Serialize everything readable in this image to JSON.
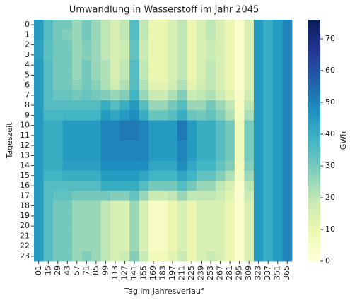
{
  "chart_data": {
    "type": "heatmap",
    "title": "Umwandlung in Wasserstoff im Jahr 2045",
    "x_label": "Tag im Jahresverlauf",
    "y_label": "Tageszeit",
    "colorbar_label": "GWh",
    "categories": [
      "01",
      "15",
      "29",
      "43",
      "57",
      "71",
      "85",
      "99",
      "113",
      "127",
      "141",
      "155",
      "169",
      "183",
      "197",
      "211",
      "225",
      "239",
      "253",
      "267",
      "281",
      "295",
      "309",
      "323",
      "337",
      "351",
      "365"
    ],
    "y_categories": [
      "0",
      "1",
      "2",
      "3",
      "4",
      "5",
      "6",
      "7",
      "8",
      "9",
      "10",
      "11",
      "12",
      "13",
      "14",
      "15",
      "16",
      "17",
      "18",
      "19",
      "20",
      "21",
      "22",
      "23"
    ],
    "clim": [
      0,
      76
    ],
    "cticks": [
      0,
      10,
      20,
      30,
      40,
      50,
      60,
      70
    ],
    "colormap": [
      "#ffffd9",
      "#edf8b1",
      "#c7e9b4",
      "#7fcdbb",
      "#41b6c4",
      "#1d91c0",
      "#225ea8",
      "#253494",
      "#081d58"
    ],
    "values": [
      [
        45,
        35,
        30,
        30,
        25,
        30,
        25,
        20,
        15,
        20,
        35,
        20,
        10,
        10,
        15,
        20,
        10,
        15,
        20,
        15,
        10,
        3,
        15,
        45,
        40,
        45,
        50
      ],
      [
        45,
        35,
        30,
        28,
        25,
        30,
        25,
        20,
        15,
        20,
        35,
        20,
        10,
        10,
        15,
        20,
        10,
        15,
        20,
        15,
        10,
        3,
        15,
        45,
        40,
        45,
        50
      ],
      [
        44,
        34,
        30,
        30,
        25,
        28,
        25,
        20,
        15,
        18,
        33,
        18,
        10,
        10,
        15,
        20,
        10,
        15,
        18,
        15,
        10,
        3,
        15,
        45,
        40,
        45,
        50
      ],
      [
        44,
        34,
        30,
        30,
        25,
        28,
        25,
        20,
        15,
        18,
        33,
        18,
        10,
        10,
        15,
        20,
        10,
        15,
        18,
        15,
        10,
        3,
        15,
        45,
        40,
        45,
        50
      ],
      [
        45,
        35,
        30,
        30,
        25,
        30,
        25,
        22,
        15,
        20,
        35,
        20,
        10,
        10,
        15,
        20,
        10,
        15,
        20,
        15,
        10,
        3,
        15,
        45,
        40,
        45,
        50
      ],
      [
        45,
        35,
        30,
        30,
        25,
        30,
        25,
        22,
        15,
        20,
        35,
        20,
        10,
        10,
        15,
        20,
        10,
        15,
        20,
        15,
        10,
        3,
        15,
        45,
        40,
        45,
        50
      ],
      [
        45,
        35,
        30,
        30,
        27,
        30,
        27,
        22,
        17,
        22,
        35,
        22,
        12,
        12,
        17,
        22,
        12,
        17,
        20,
        15,
        10,
        3,
        15,
        45,
        40,
        45,
        50
      ],
      [
        45,
        35,
        32,
        32,
        30,
        32,
        30,
        28,
        25,
        28,
        38,
        25,
        18,
        18,
        22,
        28,
        18,
        20,
        22,
        18,
        12,
        4,
        17,
        45,
        40,
        45,
        50
      ],
      [
        45,
        35,
        35,
        35,
        35,
        35,
        35,
        40,
        35,
        40,
        45,
        35,
        25,
        25,
        30,
        35,
        25,
        25,
        30,
        25,
        20,
        5,
        20,
        45,
        40,
        45,
        50
      ],
      [
        45,
        37,
        37,
        38,
        38,
        38,
        38,
        45,
        42,
        45,
        48,
        40,
        32,
        32,
        35,
        40,
        32,
        30,
        33,
        28,
        22,
        6,
        23,
        45,
        40,
        45,
        50
      ],
      [
        45,
        40,
        40,
        45,
        45,
        45,
        45,
        50,
        50,
        52,
        52,
        50,
        45,
        45,
        45,
        52,
        45,
        40,
        40,
        35,
        30,
        8,
        30,
        45,
        40,
        45,
        50
      ],
      [
        45,
        40,
        40,
        45,
        45,
        45,
        45,
        50,
        50,
        52,
        52,
        50,
        45,
        45,
        45,
        52,
        45,
        40,
        40,
        35,
        30,
        8,
        30,
        45,
        40,
        45,
        50
      ],
      [
        45,
        40,
        40,
        45,
        45,
        45,
        45,
        50,
        50,
        50,
        50,
        50,
        45,
        45,
        45,
        50,
        45,
        40,
        40,
        35,
        30,
        8,
        30,
        45,
        40,
        45,
        50
      ],
      [
        45,
        40,
        40,
        45,
        45,
        45,
        45,
        50,
        50,
        50,
        50,
        50,
        45,
        45,
        45,
        50,
        45,
        40,
        40,
        35,
        30,
        8,
        30,
        45,
        40,
        45,
        50
      ],
      [
        45,
        40,
        40,
        44,
        44,
        44,
        44,
        48,
        48,
        48,
        48,
        48,
        42,
        42,
        42,
        48,
        42,
        38,
        38,
        33,
        28,
        7,
        28,
        45,
        40,
        45,
        50
      ],
      [
        45,
        38,
        38,
        40,
        40,
        40,
        40,
        45,
        45,
        45,
        45,
        42,
        38,
        38,
        38,
        42,
        38,
        33,
        33,
        28,
        22,
        6,
        25,
        45,
        40,
        45,
        50
      ],
      [
        45,
        35,
        35,
        35,
        35,
        35,
        35,
        40,
        40,
        40,
        40,
        35,
        30,
        30,
        30,
        35,
        30,
        25,
        25,
        20,
        15,
        3,
        20,
        45,
        40,
        45,
        50
      ],
      [
        45,
        35,
        33,
        33,
        30,
        30,
        30,
        30,
        28,
        28,
        33,
        25,
        18,
        18,
        20,
        25,
        20,
        20,
        20,
        18,
        12,
        3,
        18,
        45,
        40,
        45,
        50
      ],
      [
        45,
        35,
        30,
        30,
        25,
        25,
        25,
        20,
        15,
        15,
        25,
        15,
        5,
        5,
        10,
        15,
        10,
        15,
        15,
        15,
        10,
        3,
        15,
        45,
        40,
        45,
        50
      ],
      [
        45,
        35,
        30,
        30,
        25,
        25,
        25,
        20,
        15,
        15,
        25,
        15,
        5,
        5,
        10,
        15,
        10,
        15,
        15,
        15,
        10,
        3,
        15,
        45,
        40,
        45,
        50
      ],
      [
        45,
        35,
        30,
        30,
        25,
        25,
        25,
        20,
        15,
        15,
        25,
        15,
        5,
        5,
        10,
        15,
        10,
        15,
        15,
        15,
        10,
        3,
        15,
        45,
        40,
        45,
        50
      ],
      [
        45,
        35,
        30,
        30,
        25,
        25,
        25,
        20,
        15,
        15,
        25,
        15,
        5,
        5,
        10,
        15,
        10,
        15,
        15,
        15,
        10,
        3,
        15,
        45,
        40,
        45,
        50
      ],
      [
        45,
        35,
        30,
        30,
        25,
        25,
        25,
        20,
        15,
        15,
        25,
        15,
        5,
        5,
        10,
        15,
        10,
        15,
        15,
        15,
        10,
        3,
        15,
        45,
        40,
        45,
        50
      ],
      [
        45,
        35,
        30,
        30,
        25,
        28,
        25,
        20,
        15,
        18,
        28,
        18,
        8,
        8,
        12,
        18,
        10,
        15,
        18,
        15,
        10,
        3,
        15,
        45,
        40,
        45,
        50
      ]
    ]
  }
}
